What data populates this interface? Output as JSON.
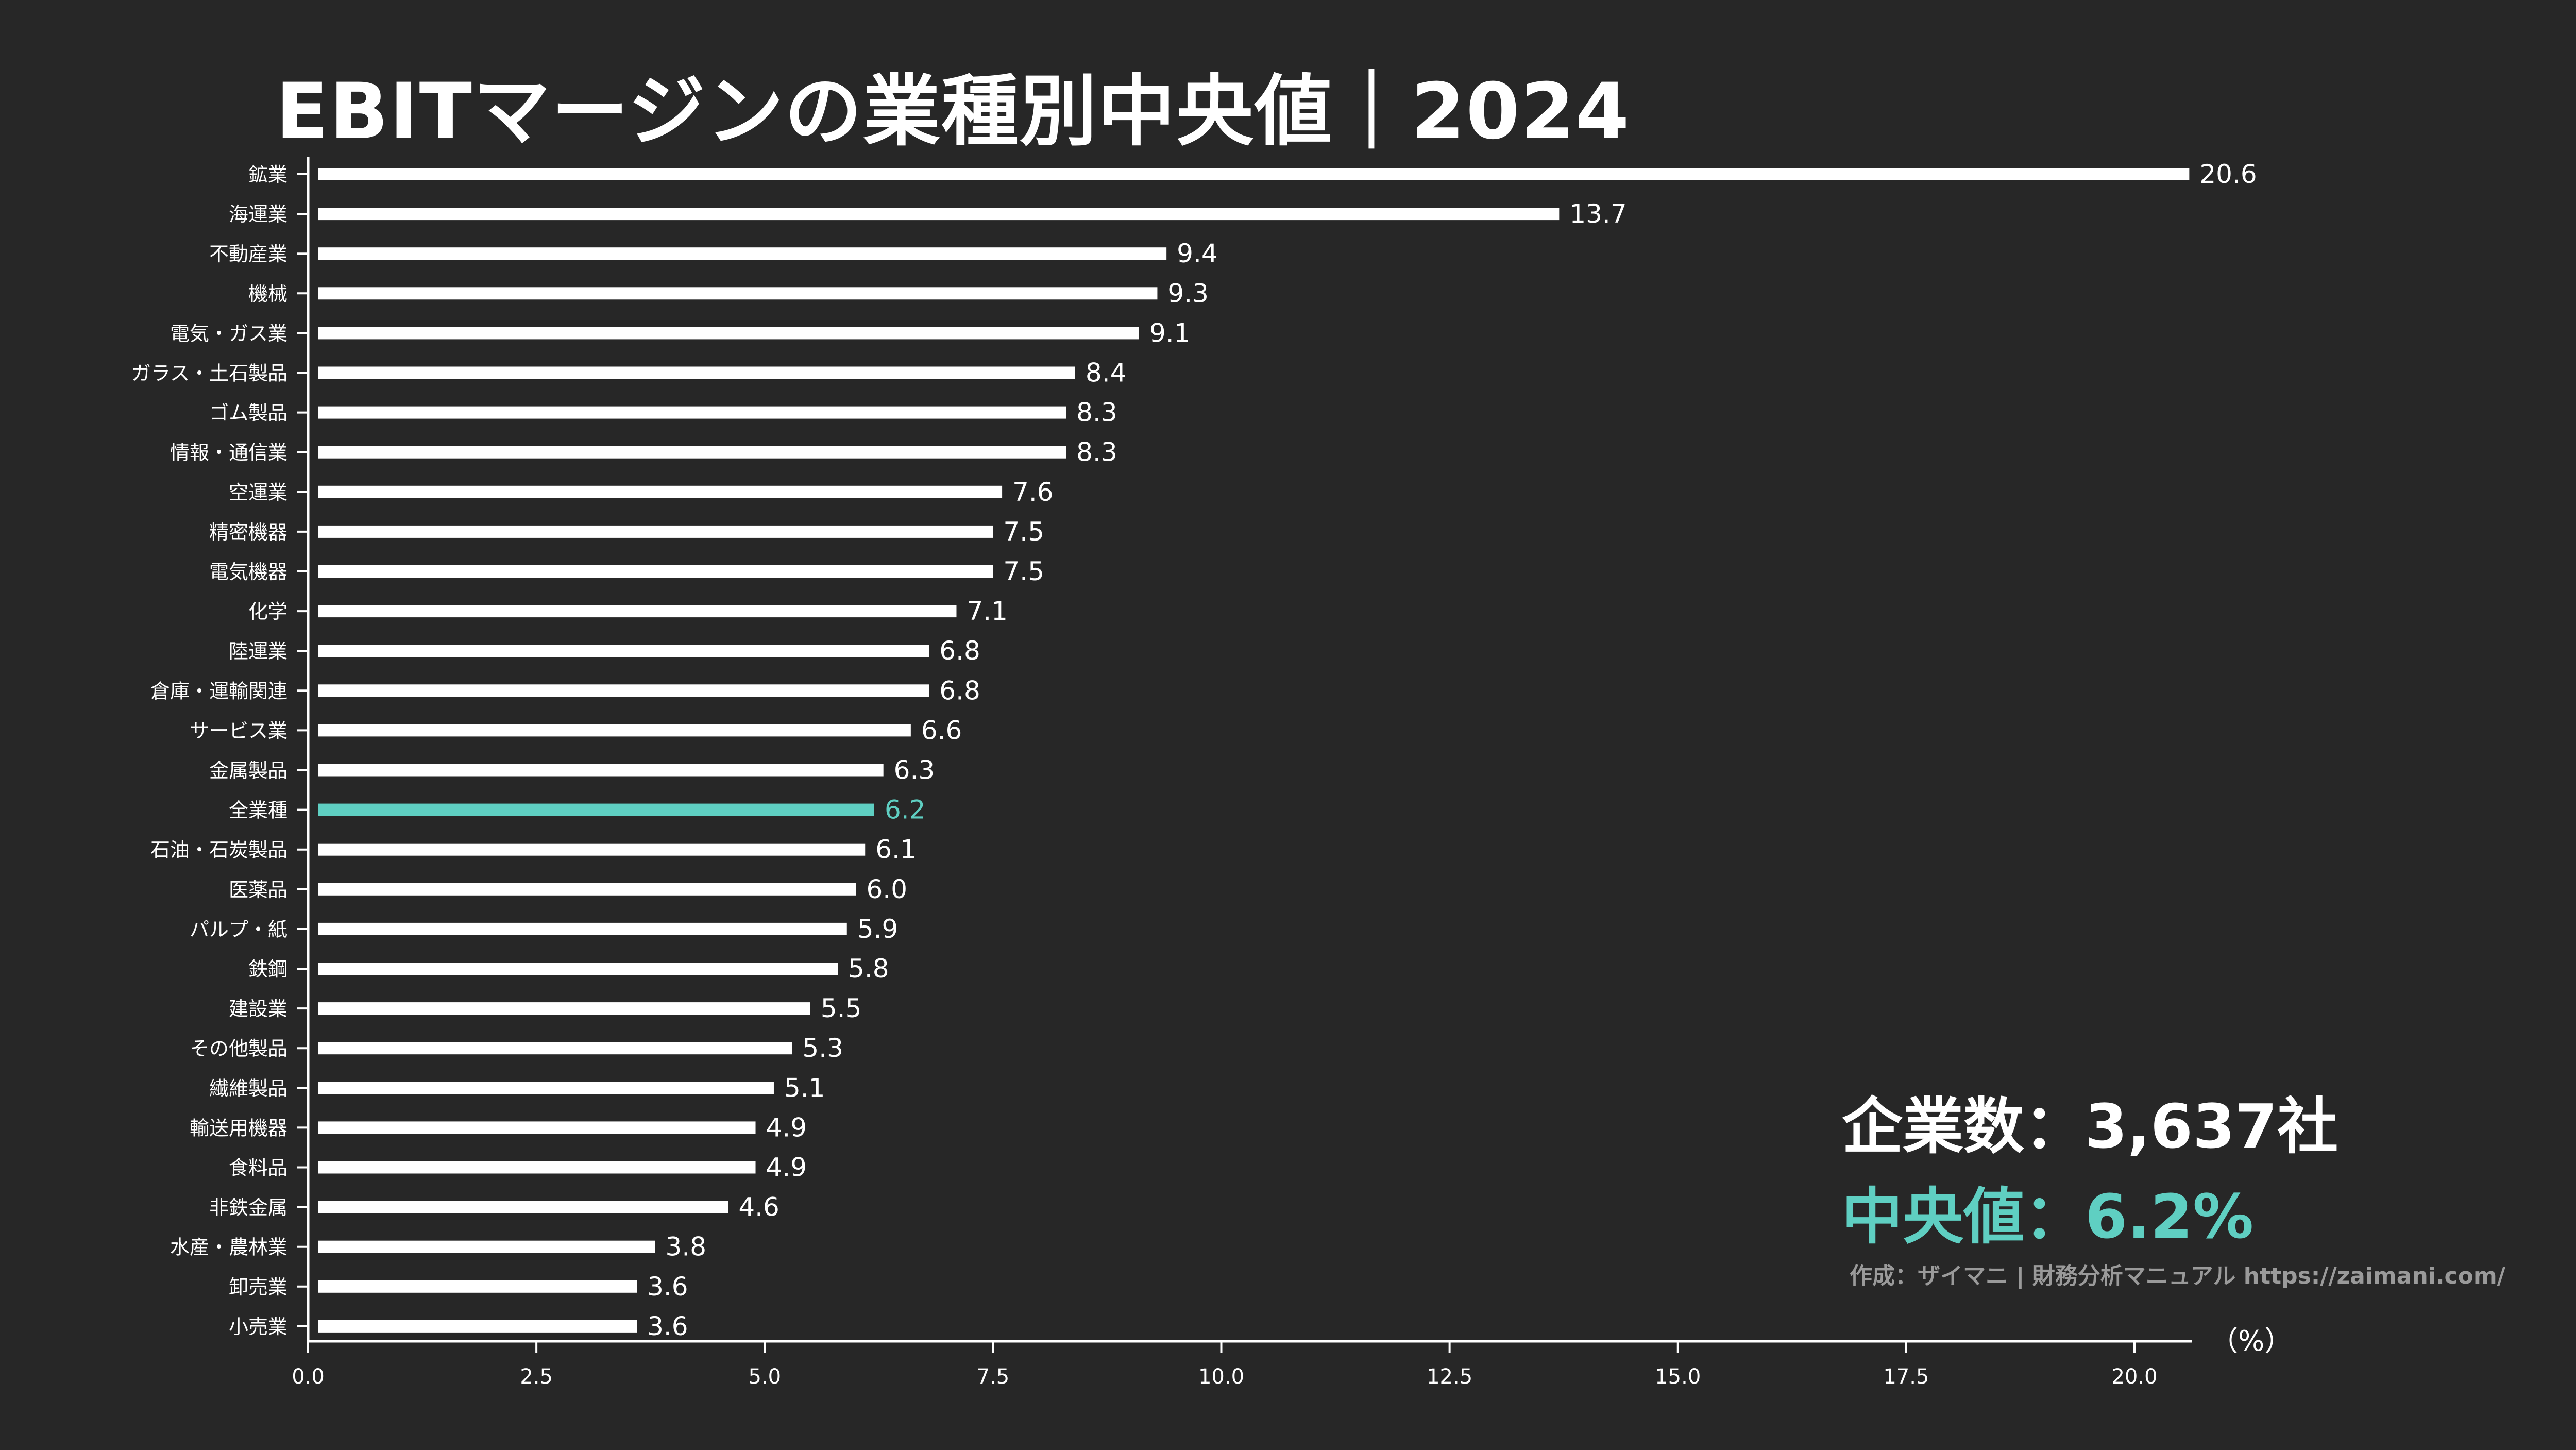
{
  "chart_data": {
    "type": "bar",
    "orientation": "horizontal",
    "title": "EBITマージンの業種別中央値｜2024",
    "xlabel": "（%）",
    "ylabel": "",
    "xlim": [
      0,
      20.6
    ],
    "xticks": [
      "0.0",
      "2.5",
      "5.0",
      "7.5",
      "10.0",
      "12.5",
      "15.0",
      "17.5",
      "20.0"
    ],
    "xtick_values": [
      0,
      2.5,
      5,
      7.5,
      10,
      12.5,
      15,
      17.5,
      20
    ],
    "grid": false,
    "highlight": "全業種",
    "categories": [
      "鉱業",
      "海運業",
      "不動産業",
      "機械",
      "電気・ガス業",
      "ガラス・土石製品",
      "ゴム製品",
      "情報・通信業",
      "空運業",
      "精密機器",
      "電気機器",
      "化学",
      "陸運業",
      "倉庫・運輸関連",
      "サービス業",
      "金属製品",
      "全業種",
      "石油・石炭製品",
      "医薬品",
      "パルプ・紙",
      "鉄鋼",
      "建設業",
      "その他製品",
      "繊維製品",
      "輸送用機器",
      "食料品",
      "非鉄金属",
      "水産・農林業",
      "卸売業",
      "小売業"
    ],
    "values": [
      20.6,
      13.7,
      9.4,
      9.3,
      9.1,
      8.4,
      8.3,
      8.3,
      7.6,
      7.5,
      7.5,
      7.1,
      6.8,
      6.8,
      6.6,
      6.3,
      6.2,
      6.1,
      6.0,
      5.9,
      5.8,
      5.5,
      5.3,
      5.1,
      4.9,
      4.9,
      4.6,
      3.8,
      3.6,
      3.6
    ],
    "value_labels": [
      "20.6",
      "13.7",
      "9.4",
      "9.3",
      "9.1",
      "8.4",
      "8.3",
      "8.3",
      "7.6",
      "7.5",
      "7.5",
      "7.1",
      "6.8",
      "6.8",
      "6.6",
      "6.3",
      "6.2",
      "6.1",
      "6.0",
      "5.9",
      "5.8",
      "5.5",
      "5.3",
      "5.1",
      "4.9",
      "4.9",
      "4.6",
      "3.8",
      "3.6",
      "3.6"
    ]
  },
  "stats": {
    "companies": "企業数：3,637社",
    "median": "中央値：6.2%"
  },
  "credit": "作成：ザイマニ | 財務分析マニュアル https://zaimani.com/",
  "colors": {
    "background": "#272727",
    "bar": "#ffffff",
    "highlight": "#5fcfc2",
    "axis": "#ffffff",
    "credit": "#9a9a9a"
  }
}
